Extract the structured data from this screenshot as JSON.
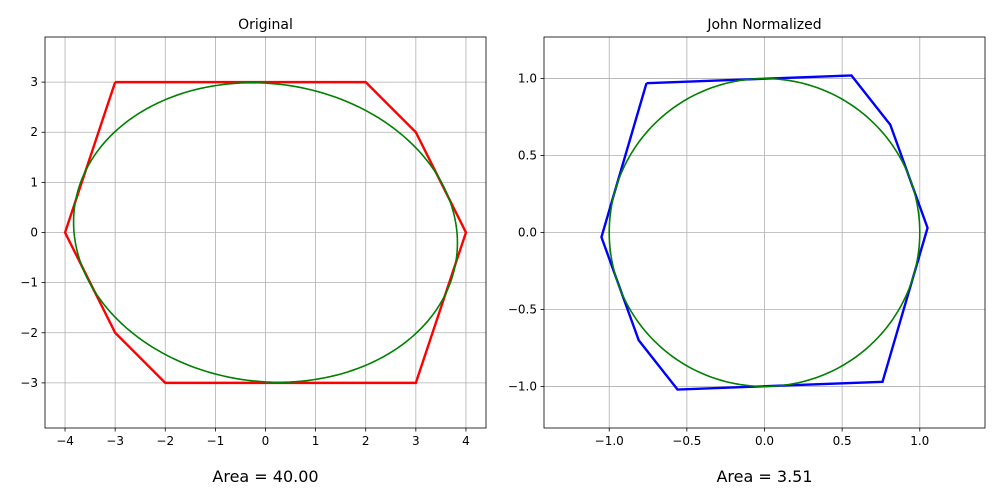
{
  "chart_data": [
    {
      "type": "line",
      "title": "Original",
      "caption": "Area = 40.00",
      "xlim": [
        -4.4,
        4.4
      ],
      "ylim": [
        -3.9,
        3.9
      ],
      "xticks": [
        -4,
        -3,
        -2,
        -1,
        0,
        1,
        2,
        3,
        4
      ],
      "xtick_labels": [
        "−4",
        "−3",
        "−2",
        "−1",
        "0",
        "1",
        "2",
        "3",
        "4"
      ],
      "yticks": [
        -3,
        -2,
        -1,
        0,
        1,
        2,
        3
      ],
      "ytick_labels": [
        "−3",
        "−2",
        "−1",
        "0",
        "1",
        "2",
        "3"
      ],
      "grid": true,
      "polygon": {
        "color": "#ff0000",
        "points": [
          [
            -3,
            3
          ],
          [
            2,
            3
          ],
          [
            3,
            2
          ],
          [
            4,
            0
          ],
          [
            3,
            -3
          ],
          [
            -2,
            -3
          ],
          [
            -3,
            -2
          ],
          [
            -4,
            0
          ],
          [
            -3,
            3
          ]
        ]
      },
      "ellipse": {
        "color": "#008000",
        "center": [
          0,
          0
        ],
        "a": 3.83,
        "b": 2.98,
        "shear": -0.18
      }
    },
    {
      "type": "line",
      "title": "John Normalized",
      "caption": "Area = 3.51",
      "xlim": [
        -1.42,
        1.42
      ],
      "ylim": [
        -1.27,
        1.27
      ],
      "xticks": [
        -1.0,
        -0.5,
        0.0,
        0.5,
        1.0
      ],
      "xtick_labels": [
        "−1.0",
        "−0.5",
        "0.0",
        "0.5",
        "1.0"
      ],
      "yticks": [
        -1.0,
        -0.5,
        0.0,
        0.5,
        1.0
      ],
      "ytick_labels": [
        "−1.0",
        "−0.5",
        "0.0",
        "0.5",
        "1.0"
      ],
      "grid": true,
      "polygon": {
        "color": "#0000ff",
        "points": [
          [
            -0.76,
            0.97
          ],
          [
            0.56,
            1.02
          ],
          [
            0.81,
            0.7
          ],
          [
            1.05,
            0.03
          ],
          [
            0.76,
            -0.97
          ],
          [
            -0.56,
            -1.02
          ],
          [
            -0.81,
            -0.7
          ],
          [
            -1.05,
            -0.03
          ],
          [
            -0.76,
            0.97
          ]
        ]
      },
      "ellipse": {
        "color": "#008000",
        "center": [
          0,
          0
        ],
        "a": 1.0,
        "b": 1.0,
        "shear": 0
      }
    }
  ]
}
